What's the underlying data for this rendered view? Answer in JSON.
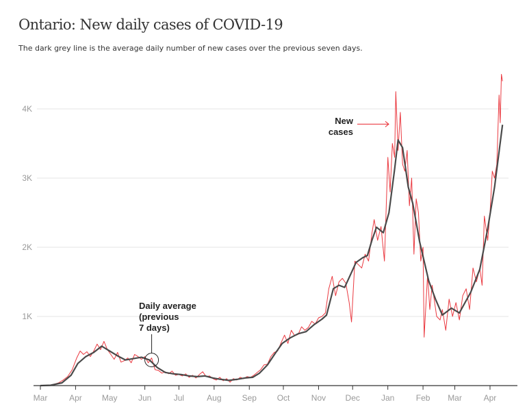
{
  "chart_data": {
    "type": "line",
    "title": "Ontario: New daily cases of COVID-19",
    "subtitle": "The dark grey line is the average daily number of new cases over the previous seven days.",
    "xlabel": "",
    "ylabel": "",
    "xlim": [
      "2020-03-01",
      "2021-04-12"
    ],
    "ylim": [
      0,
      4500
    ],
    "grid": true,
    "x_ticks": [
      {
        "date": "2020-03-01",
        "label": "Mar"
      },
      {
        "date": "2020-04-01",
        "label": "Apr"
      },
      {
        "date": "2020-05-01",
        "label": "May"
      },
      {
        "date": "2020-06-01",
        "label": "Jun"
      },
      {
        "date": "2020-07-01",
        "label": "Jul"
      },
      {
        "date": "2020-08-01",
        "label": "Aug"
      },
      {
        "date": "2020-09-01",
        "label": "Sep"
      },
      {
        "date": "2020-10-01",
        "label": "Oct"
      },
      {
        "date": "2020-11-01",
        "label": "Nov"
      },
      {
        "date": "2020-12-01",
        "label": "Dec"
      },
      {
        "date": "2021-01-01",
        "label": "Jan"
      },
      {
        "date": "2021-02-01",
        "label": "Feb"
      },
      {
        "date": "2021-03-01",
        "label": "Mar"
      },
      {
        "date": "2021-04-01",
        "label": "Apr"
      }
    ],
    "y_ticks": [
      {
        "value": 1000,
        "label": "1K"
      },
      {
        "value": 2000,
        "label": "2K"
      },
      {
        "value": 3000,
        "label": "3K"
      },
      {
        "value": 4000,
        "label": "4K"
      }
    ],
    "colors": {
      "daily": "#e8242b",
      "average": "#4a4a4a",
      "grid": "#e6e6e6",
      "axis": "#333333",
      "tick_text": "#999999"
    },
    "series": [
      {
        "key": "daily",
        "points": [
          [
            "2020-03-01",
            0
          ],
          [
            "2020-03-05",
            2
          ],
          [
            "2020-03-09",
            5
          ],
          [
            "2020-03-13",
            20
          ],
          [
            "2020-03-17",
            40
          ],
          [
            "2020-03-21",
            80
          ],
          [
            "2020-03-25",
            130
          ],
          [
            "2020-03-29",
            230
          ],
          [
            "2020-04-02",
            400
          ],
          [
            "2020-04-05",
            500
          ],
          [
            "2020-04-08",
            450
          ],
          [
            "2020-04-11",
            490
          ],
          [
            "2020-04-14",
            420
          ],
          [
            "2020-04-17",
            500
          ],
          [
            "2020-04-20",
            600
          ],
          [
            "2020-04-23",
            520
          ],
          [
            "2020-04-26",
            640
          ],
          [
            "2020-04-29",
            520
          ],
          [
            "2020-05-02",
            450
          ],
          [
            "2020-05-05",
            380
          ],
          [
            "2020-05-08",
            480
          ],
          [
            "2020-05-11",
            340
          ],
          [
            "2020-05-14",
            360
          ],
          [
            "2020-05-17",
            400
          ],
          [
            "2020-05-20",
            330
          ],
          [
            "2020-05-23",
            450
          ],
          [
            "2020-05-26",
            420
          ],
          [
            "2020-05-29",
            380
          ],
          [
            "2020-06-01",
            420
          ],
          [
            "2020-06-04",
            330
          ],
          [
            "2020-06-07",
            400
          ],
          [
            "2020-06-10",
            230
          ],
          [
            "2020-06-13",
            220
          ],
          [
            "2020-06-16",
            180
          ],
          [
            "2020-06-19",
            200
          ],
          [
            "2020-06-22",
            170
          ],
          [
            "2020-06-25",
            210
          ],
          [
            "2020-06-28",
            150
          ],
          [
            "2020-07-01",
            160
          ],
          [
            "2020-07-04",
            140
          ],
          [
            "2020-07-07",
            170
          ],
          [
            "2020-07-10",
            120
          ],
          [
            "2020-07-13",
            150
          ],
          [
            "2020-07-16",
            110
          ],
          [
            "2020-07-19",
            160
          ],
          [
            "2020-07-22",
            200
          ],
          [
            "2020-07-25",
            130
          ],
          [
            "2020-07-28",
            140
          ],
          [
            "2020-07-31",
            100
          ],
          [
            "2020-08-03",
            80
          ],
          [
            "2020-08-06",
            120
          ],
          [
            "2020-08-09",
            70
          ],
          [
            "2020-08-12",
            100
          ],
          [
            "2020-08-15",
            50
          ],
          [
            "2020-08-18",
            100
          ],
          [
            "2020-08-21",
            80
          ],
          [
            "2020-08-24",
            120
          ],
          [
            "2020-08-27",
            100
          ],
          [
            "2020-08-30",
            130
          ],
          [
            "2020-09-02",
            120
          ],
          [
            "2020-09-05",
            150
          ],
          [
            "2020-09-08",
            190
          ],
          [
            "2020-09-11",
            230
          ],
          [
            "2020-09-14",
            300
          ],
          [
            "2020-09-17",
            310
          ],
          [
            "2020-09-20",
            420
          ],
          [
            "2020-09-23",
            480
          ],
          [
            "2020-09-26",
            500
          ],
          [
            "2020-09-29",
            620
          ],
          [
            "2020-10-02",
            730
          ],
          [
            "2020-10-05",
            610
          ],
          [
            "2020-10-08",
            800
          ],
          [
            "2020-10-11",
            720
          ],
          [
            "2020-10-14",
            740
          ],
          [
            "2020-10-17",
            850
          ],
          [
            "2020-10-20",
            800
          ],
          [
            "2020-10-23",
            840
          ],
          [
            "2020-10-26",
            930
          ],
          [
            "2020-10-29",
            890
          ],
          [
            "2020-11-01",
            980
          ],
          [
            "2020-11-04",
            1000
          ],
          [
            "2020-11-07",
            1050
          ],
          [
            "2020-11-10",
            1400
          ],
          [
            "2020-11-13",
            1580
          ],
          [
            "2020-11-16",
            1300
          ],
          [
            "2020-11-19",
            1500
          ],
          [
            "2020-11-22",
            1550
          ],
          [
            "2020-11-25",
            1480
          ],
          [
            "2020-11-28",
            1200
          ],
          [
            "2020-11-30",
            920
          ],
          [
            "2020-12-03",
            1800
          ],
          [
            "2020-12-06",
            1750
          ],
          [
            "2020-12-09",
            1700
          ],
          [
            "2020-12-12",
            1900
          ],
          [
            "2020-12-15",
            1800
          ],
          [
            "2020-12-18",
            2200
          ],
          [
            "2020-12-20",
            2400
          ],
          [
            "2020-12-23",
            2100
          ],
          [
            "2020-12-26",
            2300
          ],
          [
            "2020-12-29",
            1800
          ],
          [
            "2021-01-01",
            3300
          ],
          [
            "2021-01-03",
            2800
          ],
          [
            "2021-01-05",
            3500
          ],
          [
            "2021-01-07",
            3300
          ],
          [
            "2021-01-08",
            4250
          ],
          [
            "2021-01-10",
            3400
          ],
          [
            "2021-01-12",
            3950
          ],
          [
            "2021-01-14",
            3200
          ],
          [
            "2021-01-16",
            3100
          ],
          [
            "2021-01-18",
            3400
          ],
          [
            "2021-01-20",
            2600
          ],
          [
            "2021-01-22",
            3000
          ],
          [
            "2021-01-24",
            1900
          ],
          [
            "2021-01-26",
            2700
          ],
          [
            "2021-01-28",
            2500
          ],
          [
            "2021-01-30",
            1800
          ],
          [
            "2021-02-01",
            2000
          ],
          [
            "2021-02-02",
            700
          ],
          [
            "2021-02-05",
            1600
          ],
          [
            "2021-02-07",
            1100
          ],
          [
            "2021-02-09",
            1450
          ],
          [
            "2021-02-13",
            1000
          ],
          [
            "2021-02-16",
            950
          ],
          [
            "2021-02-18",
            1100
          ],
          [
            "2021-02-21",
            800
          ],
          [
            "2021-02-24",
            1250
          ],
          [
            "2021-02-27",
            1000
          ],
          [
            "2021-03-02",
            1200
          ],
          [
            "2021-03-05",
            950
          ],
          [
            "2021-03-08",
            1300
          ],
          [
            "2021-03-11",
            1400
          ],
          [
            "2021-03-14",
            1100
          ],
          [
            "2021-03-17",
            1700
          ],
          [
            "2021-03-20",
            1500
          ],
          [
            "2021-03-23",
            1700
          ],
          [
            "2021-03-25",
            1450
          ],
          [
            "2021-03-27",
            2450
          ],
          [
            "2021-03-30",
            2100
          ],
          [
            "2021-04-01",
            2500
          ],
          [
            "2021-04-03",
            3100
          ],
          [
            "2021-04-05",
            3000
          ],
          [
            "2021-04-07",
            3200
          ],
          [
            "2021-04-09",
            4200
          ],
          [
            "2021-04-10",
            3800
          ],
          [
            "2021-04-11",
            4500
          ],
          [
            "2021-04-12",
            4400
          ]
        ]
      },
      {
        "key": "average",
        "points": [
          [
            "2020-03-01",
            0
          ],
          [
            "2020-03-10",
            5
          ],
          [
            "2020-03-20",
            40
          ],
          [
            "2020-03-28",
            150
          ],
          [
            "2020-04-03",
            320
          ],
          [
            "2020-04-10",
            420
          ],
          [
            "2020-04-17",
            480
          ],
          [
            "2020-04-24",
            570
          ],
          [
            "2020-05-01",
            500
          ],
          [
            "2020-05-08",
            430
          ],
          [
            "2020-05-15",
            370
          ],
          [
            "2020-05-22",
            390
          ],
          [
            "2020-05-29",
            410
          ],
          [
            "2020-06-05",
            370
          ],
          [
            "2020-06-12",
            260
          ],
          [
            "2020-06-19",
            190
          ],
          [
            "2020-06-26",
            170
          ],
          [
            "2020-07-03",
            160
          ],
          [
            "2020-07-10",
            140
          ],
          [
            "2020-07-17",
            130
          ],
          [
            "2020-07-24",
            140
          ],
          [
            "2020-07-31",
            110
          ],
          [
            "2020-08-07",
            90
          ],
          [
            "2020-08-14",
            75
          ],
          [
            "2020-08-21",
            90
          ],
          [
            "2020-08-28",
            110
          ],
          [
            "2020-09-04",
            120
          ],
          [
            "2020-09-10",
            180
          ],
          [
            "2020-09-17",
            300
          ],
          [
            "2020-09-24",
            470
          ],
          [
            "2020-09-30",
            610
          ],
          [
            "2020-10-07",
            690
          ],
          [
            "2020-10-14",
            750
          ],
          [
            "2020-10-21",
            780
          ],
          [
            "2020-10-28",
            880
          ],
          [
            "2020-11-04",
            960
          ],
          [
            "2020-11-08",
            1020
          ],
          [
            "2020-11-14",
            1400
          ],
          [
            "2020-11-19",
            1450
          ],
          [
            "2020-11-24",
            1420
          ],
          [
            "2020-11-29",
            1600
          ],
          [
            "2020-12-04",
            1780
          ],
          [
            "2020-12-10",
            1850
          ],
          [
            "2020-12-14",
            1880
          ],
          [
            "2020-12-18",
            2100
          ],
          [
            "2020-12-22",
            2290
          ],
          [
            "2020-12-28",
            2210
          ],
          [
            "2021-01-02",
            2500
          ],
          [
            "2021-01-07",
            3130
          ],
          [
            "2021-01-10",
            3550
          ],
          [
            "2021-01-14",
            3440
          ],
          [
            "2021-01-19",
            2870
          ],
          [
            "2021-01-23",
            2630
          ],
          [
            "2021-01-29",
            2080
          ],
          [
            "2021-02-06",
            1515
          ],
          [
            "2021-02-12",
            1250
          ],
          [
            "2021-02-18",
            1020
          ],
          [
            "2021-02-26",
            1120
          ],
          [
            "2021-03-05",
            1050
          ],
          [
            "2021-03-15",
            1350
          ],
          [
            "2021-03-23",
            1680
          ],
          [
            "2021-03-30",
            2270
          ],
          [
            "2021-04-05",
            2870
          ],
          [
            "2021-04-12",
            3770
          ]
        ]
      }
    ],
    "annotations": {
      "new_cases": {
        "lines": [
          "New",
          "cases"
        ],
        "target_date": "2021-01-03",
        "target_value": 3780,
        "arrow": "right"
      },
      "daily_average": {
        "lines": [
          "Daily average",
          "(previous",
          "7 days)"
        ],
        "target_date": "2020-06-07",
        "target_value": 370,
        "marker": "circle"
      }
    }
  }
}
